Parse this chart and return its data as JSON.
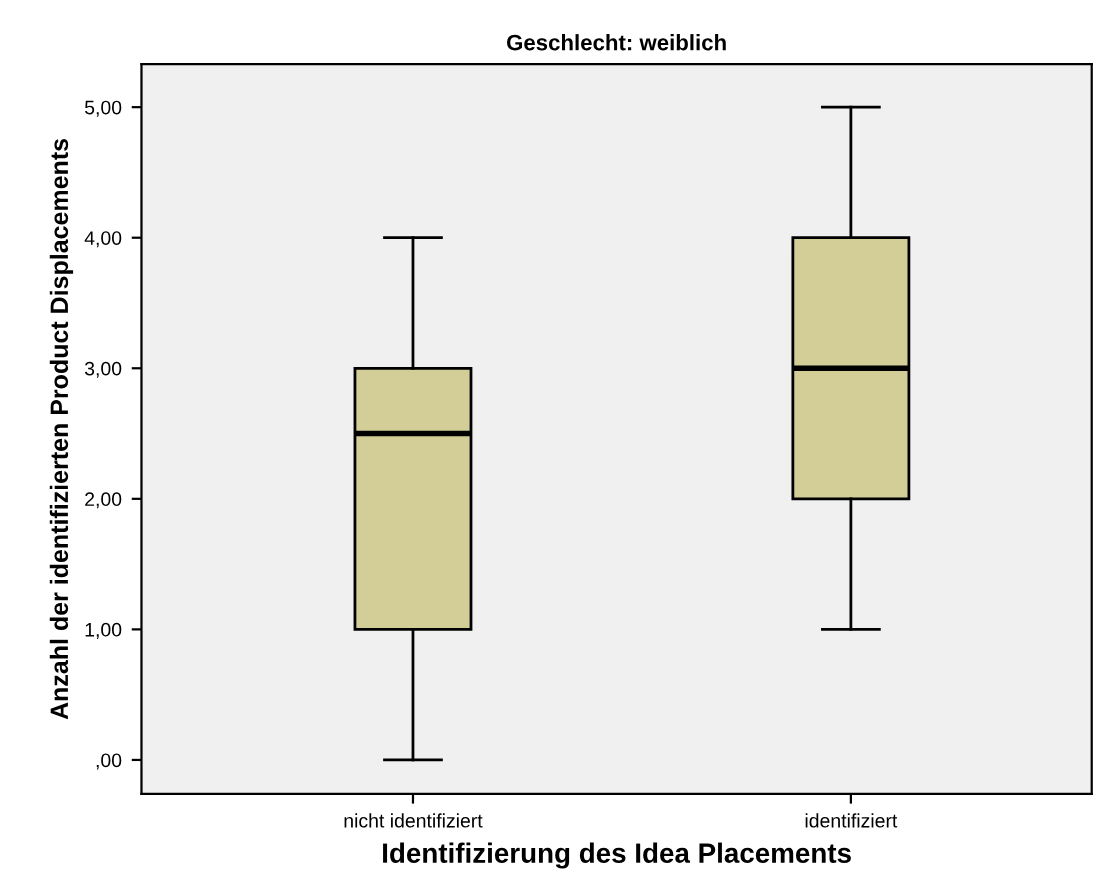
{
  "chart_data": {
    "type": "box",
    "title": "Geschlecht: weiblich",
    "xlabel": "Identifizierung des Idea Placements",
    "ylabel": "Anzahl der identifizierten Product Displacements",
    "categories": [
      "nicht identifiziert",
      "identifiziert"
    ],
    "color": "#d3ce97",
    "boxes": [
      {
        "low": 0,
        "q1": 1,
        "median": 2.5,
        "q3": 3,
        "high": 4
      },
      {
        "low": 1,
        "q1": 2,
        "median": 3,
        "q3": 4,
        "high": 5
      }
    ],
    "ylim": [
      -0.26,
      5.33
    ],
    "yticks": [
      {
        "value": 0,
        "label": ",00"
      },
      {
        "value": 1,
        "label": "1,00"
      },
      {
        "value": 2,
        "label": "2,00"
      },
      {
        "value": 3,
        "label": "3,00"
      },
      {
        "value": 4,
        "label": "4,00"
      },
      {
        "value": 5,
        "label": "5,00"
      }
    ],
    "grid": false
  }
}
